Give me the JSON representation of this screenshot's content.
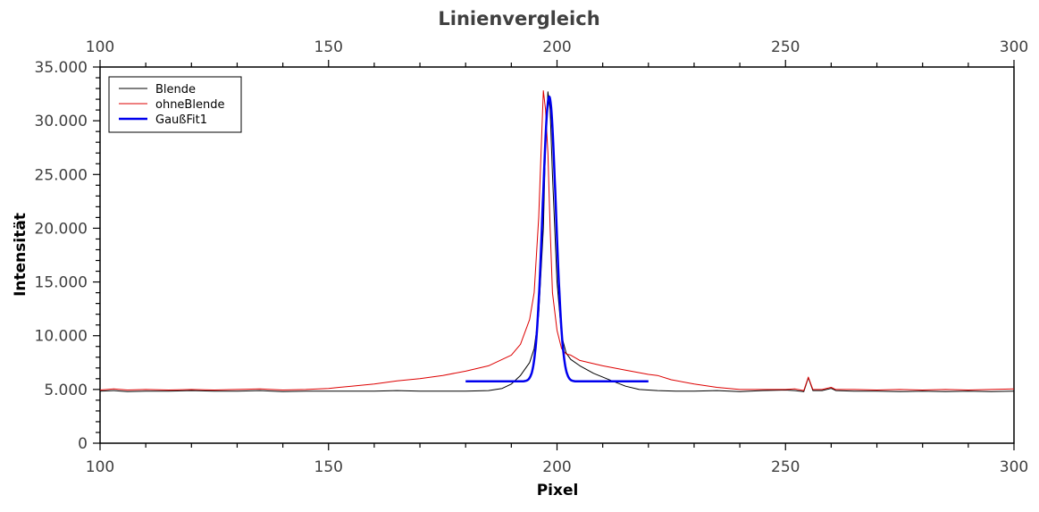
{
  "chart_data": {
    "type": "line",
    "title": "Linienvergleich",
    "xlabel": "Pixel",
    "ylabel": "Intensität",
    "xlim": [
      100,
      300
    ],
    "ylim": [
      0,
      35000
    ],
    "x_ticks": [
      100,
      150,
      200,
      250,
      300
    ],
    "x_tick_labels": [
      "100",
      "150",
      "200",
      "250",
      "300"
    ],
    "x_minor_step": 10,
    "top_axis_ticks": [
      100,
      150,
      200,
      250,
      300
    ],
    "y_ticks": [
      0,
      5000,
      10000,
      15000,
      20000,
      25000,
      30000,
      35000
    ],
    "y_tick_labels": [
      "0",
      "5.000",
      "10.000",
      "15.000",
      "20.000",
      "25.000",
      "30.000",
      "35.000"
    ],
    "y_minor_step": 1000,
    "grid": false,
    "legend_position": "upper left",
    "legend": [
      "Blende",
      "ohneBlende",
      "GaußFit1"
    ],
    "series": [
      {
        "name": "Blende",
        "color": "#000000",
        "width": 1,
        "x": [
          100,
          103,
          106,
          110,
          115,
          120,
          125,
          130,
          135,
          140,
          145,
          150,
          155,
          160,
          165,
          170,
          175,
          180,
          185,
          188,
          190,
          192,
          194,
          195,
          196,
          197,
          197.5,
          198,
          198.5,
          199,
          200,
          201,
          202,
          203,
          205,
          208,
          212,
          215,
          218,
          222,
          226,
          230,
          235,
          240,
          245,
          250,
          252,
          254,
          255,
          256,
          258,
          260,
          261,
          265,
          270,
          275,
          280,
          285,
          290,
          295,
          300
        ],
        "y": [
          4850,
          4900,
          4800,
          4850,
          4850,
          4900,
          4850,
          4850,
          4900,
          4800,
          4850,
          4850,
          4850,
          4850,
          4900,
          4850,
          4850,
          4850,
          4900,
          5100,
          5500,
          6300,
          7500,
          8800,
          12000,
          20000,
          28000,
          32700,
          31000,
          25000,
          15000,
          10000,
          8400,
          7800,
          7200,
          6500,
          5800,
          5300,
          5000,
          4900,
          4850,
          4850,
          4900,
          4800,
          4900,
          4950,
          4900,
          4800,
          6100,
          4900,
          4900,
          5100,
          4900,
          4850,
          4850,
          4800,
          4850,
          4800,
          4850,
          4800,
          4850
        ]
      },
      {
        "name": "ohneBlende",
        "color": "#dd0000",
        "width": 1,
        "x": [
          100,
          103,
          106,
          110,
          115,
          120,
          125,
          130,
          135,
          140,
          145,
          150,
          155,
          160,
          165,
          170,
          175,
          180,
          185,
          190,
          192,
          194,
          195,
          196,
          196.5,
          197,
          197.5,
          198,
          198.5,
          199,
          200,
          201,
          202,
          203,
          205,
          208,
          210,
          215,
          220,
          222,
          225,
          230,
          235,
          240,
          245,
          250,
          252,
          254,
          255,
          256,
          258,
          260,
          261,
          265,
          270,
          275,
          280,
          285,
          290,
          295,
          300
        ],
        "y": [
          4950,
          5050,
          4950,
          5000,
          4950,
          5000,
          4950,
          5000,
          5050,
          4950,
          5000,
          5100,
          5300,
          5500,
          5800,
          6000,
          6300,
          6700,
          7200,
          8200,
          9200,
          11500,
          14000,
          21000,
          27000,
          32800,
          31000,
          27000,
          20000,
          14000,
          10500,
          8800,
          8300,
          8200,
          7700,
          7400,
          7200,
          6800,
          6400,
          6300,
          5900,
          5500,
          5200,
          5000,
          5000,
          5000,
          5050,
          4900,
          6150,
          5000,
          5000,
          5200,
          5000,
          5000,
          4950,
          5000,
          4950,
          5000,
          4950,
          5000,
          5050
        ]
      },
      {
        "name": "GaußFit1",
        "color": "#0000ee",
        "width": 2.5,
        "model": "gaussian",
        "x_range": [
          180,
          220
        ],
        "center": 198.3,
        "amplitude": 26500,
        "sigma": 1.45,
        "offset": 5750
      }
    ]
  }
}
